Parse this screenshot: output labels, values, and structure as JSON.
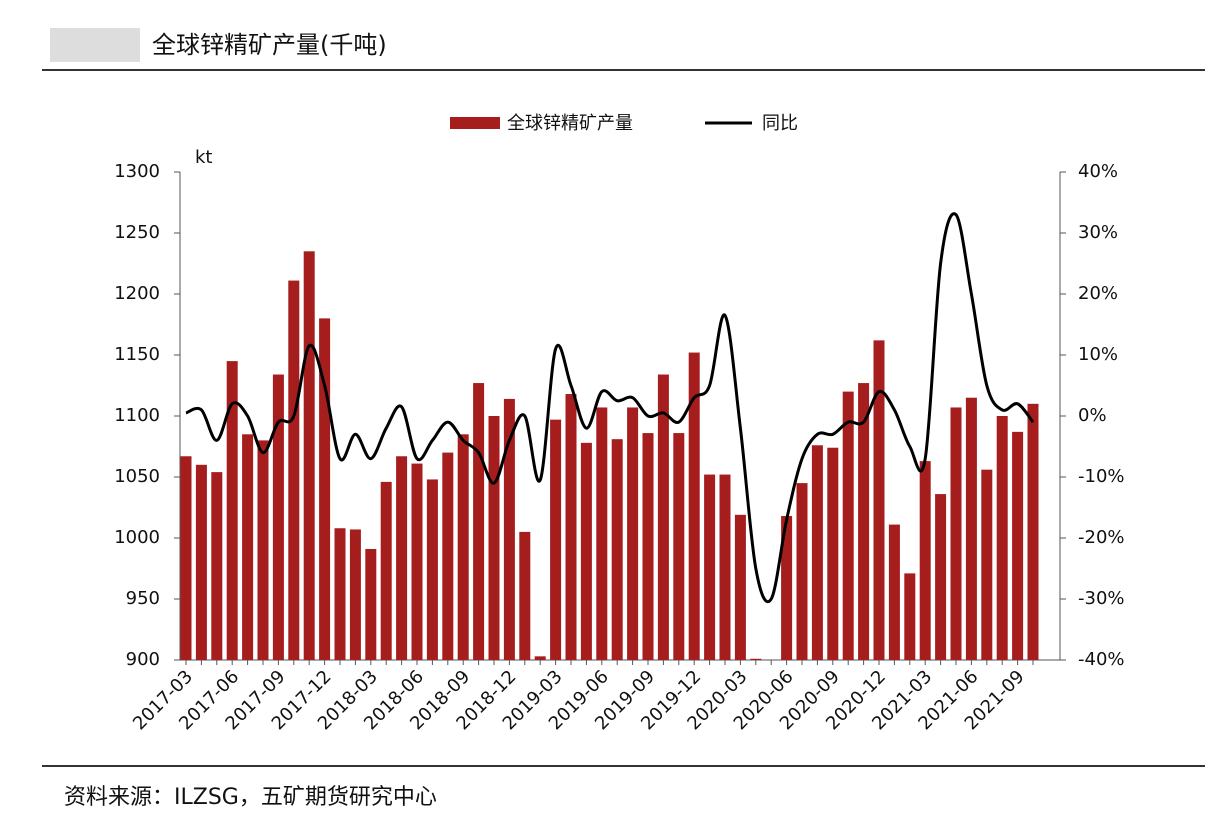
{
  "chart_data": {
    "type": "bar_line",
    "title": "全球锌精矿产量(千吨)",
    "source": "资料来源：ILZSG，五矿期货研究中心",
    "y_unit": "kt",
    "categories": [
      "2017-03",
      null,
      null,
      "2017-06",
      null,
      null,
      "2017-09",
      null,
      null,
      "2017-12",
      null,
      null,
      "2018-03",
      null,
      null,
      "2018-06",
      null,
      null,
      "2018-09",
      null,
      null,
      "2018-12",
      null,
      null,
      "2019-03",
      null,
      null,
      "2019-06",
      null,
      null,
      "2019-09",
      null,
      null,
      "2019-12",
      null,
      null,
      "2020-03",
      null,
      null,
      "2020-06",
      null,
      null,
      "2020-09",
      null,
      null,
      "2020-12",
      null,
      null,
      "2021-03",
      null,
      null,
      "2021-06",
      null,
      null,
      "2021-09",
      null
    ],
    "series": [
      {
        "name": "全球锌精矿产量",
        "color": "#a61d1d",
        "type": "bar",
        "values": [
          1067,
          1060,
          1054,
          1145,
          1085,
          1080,
          1134,
          1211,
          1235,
          1180,
          1008,
          1007,
          991,
          1046,
          1067,
          1061,
          1048,
          1070,
          1085,
          1127,
          1100,
          1114,
          1005,
          903,
          1097,
          1118,
          1078,
          1107,
          1081,
          1107,
          1086,
          1134,
          1086,
          1152,
          1052,
          1052,
          1019,
          901,
          900,
          1018,
          1045,
          1076,
          1074,
          1120,
          1127,
          1162,
          1011,
          971,
          1063,
          1036,
          1107,
          1115,
          1056,
          1100,
          1087,
          1110
        ]
      },
      {
        "name": "同比",
        "color": "#000000",
        "type": "line",
        "axis": "y2",
        "values": [
          0.5,
          1,
          -4,
          2,
          0,
          -6,
          -1,
          0,
          11.5,
          5,
          -7,
          -3,
          -7,
          -2,
          1.5,
          -7,
          -4,
          -1,
          -4,
          -6,
          -11,
          -4,
          0,
          -10.5,
          11,
          5,
          -2,
          4,
          2.5,
          3,
          0,
          0.5,
          -1,
          3,
          5,
          16.5,
          -2,
          -25,
          -30,
          -17,
          -7,
          -3,
          -3,
          -1,
          -1,
          4,
          1,
          -5,
          -7,
          25,
          33,
          20,
          5,
          1,
          2,
          -1
        ]
      }
    ],
    "ylim": [
      900,
      1300
    ],
    "yticks": [
      900,
      950,
      1000,
      1050,
      1100,
      1150,
      1200,
      1250,
      1300
    ],
    "y2lim": [
      -40,
      40
    ],
    "y2ticks": [
      {
        "value": -40,
        "label": "-40%"
      },
      {
        "value": -30,
        "label": "-30%"
      },
      {
        "value": -20,
        "label": "-20%"
      },
      {
        "value": -10,
        "label": "-10%"
      },
      {
        "value": 0,
        "label": "0%"
      },
      {
        "value": 10,
        "label": "10%"
      },
      {
        "value": 20,
        "label": "20%"
      },
      {
        "value": 30,
        "label": "30%"
      },
      {
        "value": 40,
        "label": "40%"
      }
    ]
  }
}
